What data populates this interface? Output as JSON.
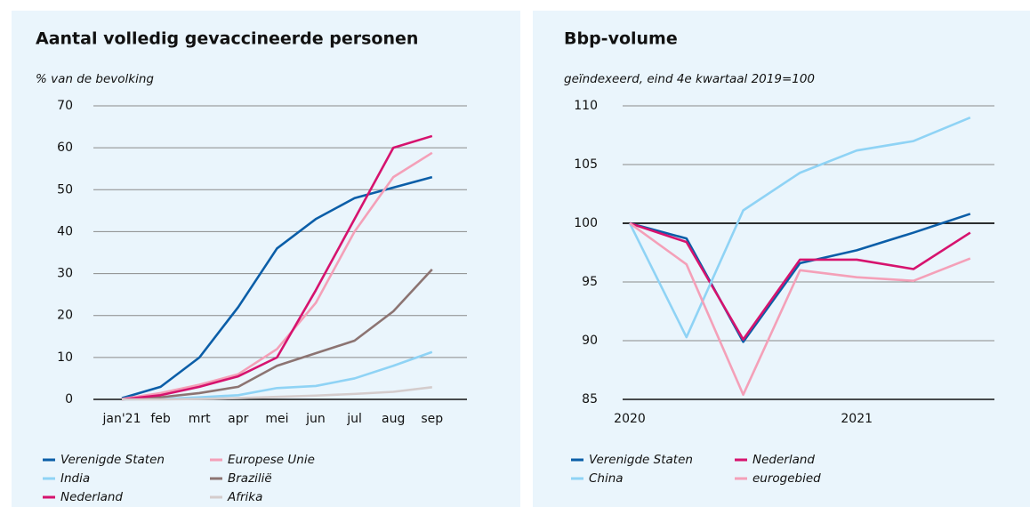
{
  "chart_data": [
    {
      "type": "line",
      "title": "Aantal volledig gevaccineerde personen",
      "y_label": "% van de bevolking",
      "categories": [
        "jan'21",
        "feb",
        "mrt",
        "apr",
        "mei",
        "jun",
        "jul",
        "aug",
        "sep"
      ],
      "series": [
        {
          "name": "Verenigde Staten",
          "color": "#0b5ea8",
          "values": [
            0.3,
            3,
            10,
            22,
            36,
            43,
            48,
            50.5,
            53
          ]
        },
        {
          "name": "Europese Unie",
          "color": "#f4a0b8",
          "values": [
            0.1,
            1.5,
            3.5,
            6,
            12,
            23,
            40,
            53,
            58.8
          ]
        },
        {
          "name": "India",
          "color": "#8fd3f5",
          "values": [
            0,
            0.1,
            0.5,
            1,
            2.7,
            3.2,
            5,
            8,
            11.3
          ]
        },
        {
          "name": "Brazilië",
          "color": "#8c7472",
          "values": [
            0,
            0.5,
            1.5,
            3,
            8,
            11,
            14,
            21,
            31
          ]
        },
        {
          "name": "Nederland",
          "color": "#d6136e",
          "values": [
            0,
            1,
            3,
            5.5,
            10,
            26,
            43,
            60,
            62.8
          ]
        },
        {
          "name": "Afrika",
          "color": "#d4cccc",
          "values": [
            0,
            0,
            0.1,
            0.3,
            0.6,
            0.9,
            1.3,
            1.8,
            2.9
          ]
        }
      ],
      "ylim": [
        0,
        70
      ],
      "yticks": [
        0,
        10,
        20,
        30,
        40,
        50,
        60,
        70
      ],
      "grid": true
    },
    {
      "type": "line",
      "title": "Bbp-volume",
      "y_label": "geïndexeerd, eind 4e kwartaal 2019=100",
      "categories": [
        "2020",
        null,
        null,
        null,
        "2021",
        null,
        null
      ],
      "series": [
        {
          "name": "Verenigde Staten",
          "color": "#0b5ea8",
          "values": [
            100,
            98.7,
            89.9,
            96.6,
            97.7,
            99.2,
            100.8
          ]
        },
        {
          "name": "Nederland",
          "color": "#d6136e",
          "values": [
            100,
            98.4,
            90.1,
            96.9,
            96.9,
            96.1,
            99.2
          ]
        },
        {
          "name": "China",
          "color": "#8fd3f5",
          "values": [
            100,
            90.3,
            101.1,
            104.3,
            106.2,
            107.0,
            109.0
          ]
        },
        {
          "name": "eurogebied",
          "color": "#f4a0b8",
          "values": [
            100,
            96.5,
            85.4,
            96.0,
            95.4,
            95.1,
            97.0
          ]
        }
      ],
      "ylim": [
        85,
        110
      ],
      "yticks": [
        85,
        90,
        95,
        100,
        105,
        110
      ],
      "grid": true,
      "reference_line": 100
    }
  ]
}
